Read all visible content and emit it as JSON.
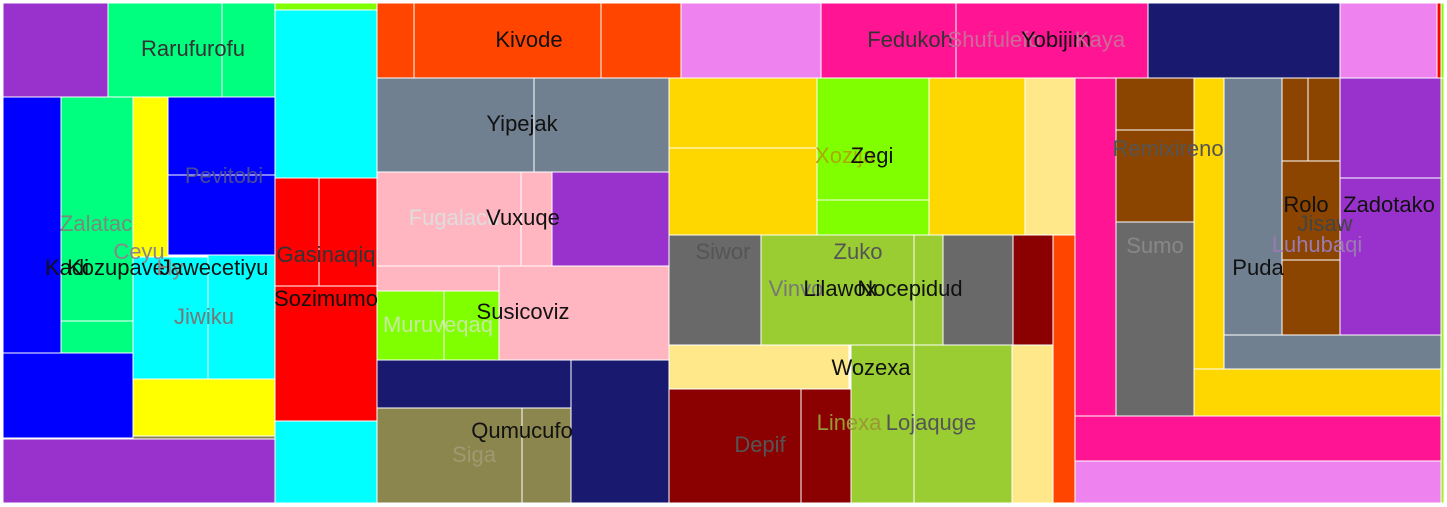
{
  "chart_data": {
    "type": "treemap",
    "colors": {
      "purple": "#9932cc",
      "green": "#00ff7f",
      "chartreuse": "#7fff00",
      "blue": "#0000ff",
      "yellow": "#ffff00",
      "cyan": "#00ffff",
      "red": "#ff0000",
      "orangered": "#ff4500",
      "slate": "#708090",
      "pink": "#ffb6c1",
      "navy": "#191970",
      "olive": "#8b864e",
      "violet": "#ee82ee",
      "deeppink": "#ff1493",
      "gold": "#ffd700",
      "khaki": "#ffe88a",
      "dimgray": "#696969",
      "yellowgreen": "#9acd32",
      "maroon": "#8b0000",
      "brown": "#8b4500",
      "darkgold": "#d4c700",
      "lightlime": "#a0f020"
    },
    "labels": [
      {
        "text": "Rarufurofu",
        "color": "#333333"
      },
      {
        "text": "Zalatac",
        "color": "#7a8a7a"
      },
      {
        "text": "Ceyu",
        "color": "#888888"
      },
      {
        "text": "Kadi",
        "color": "#111111"
      },
      {
        "text": "Kozupave",
        "color": "#111111"
      },
      {
        "text": "Hy",
        "color": "#888888"
      },
      {
        "text": "Jawecetiyu",
        "color": "#111111"
      },
      {
        "text": "Jiwiku",
        "color": "#777777"
      },
      {
        "text": "Pevitobi",
        "color": "#4a4a99"
      },
      {
        "text": "Gasinaqiq",
        "color": "#333333"
      },
      {
        "text": "Sozimumo",
        "color": "#111111"
      },
      {
        "text": "Kivode",
        "color": "#111111"
      },
      {
        "text": "Yipejak",
        "color": "#111111"
      },
      {
        "text": "Fugalacu",
        "color": "#dddddd"
      },
      {
        "text": "Vuxuqe",
        "color": "#111111"
      },
      {
        "text": "Muruveqaq",
        "color": "#c8e8a0"
      },
      {
        "text": "Susicoviz",
        "color": "#111111"
      },
      {
        "text": "Qumucufo",
        "color": "#111111"
      },
      {
        "text": "Siga",
        "color": "#a09870"
      },
      {
        "text": "Fedukoh",
        "color": "#333333"
      },
      {
        "text": "Shufulefo",
        "color": "#cc6a99"
      },
      {
        "text": "Yobijim",
        "color": "#111111"
      },
      {
        "text": "Kaya",
        "color": "#cc6a99"
      },
      {
        "text": "Xozija",
        "color": "#aaaa00"
      },
      {
        "text": "Zegi",
        "color": "#111111"
      },
      {
        "text": "Siwor",
        "color": "#555555"
      },
      {
        "text": "Zuko",
        "color": "#555555"
      },
      {
        "text": "Vinvo",
        "color": "#777777"
      },
      {
        "text": "Lilawox",
        "color": "#111111"
      },
      {
        "text": "Nocepidud",
        "color": "#111111"
      },
      {
        "text": "Wozexa",
        "color": "#111111"
      },
      {
        "text": "Depif",
        "color": "#555555"
      },
      {
        "text": "Linexa",
        "color": "#999933"
      },
      {
        "text": "Lojaquge",
        "color": "#555555"
      },
      {
        "text": "Remixireno",
        "color": "#555555"
      },
      {
        "text": "Sumo",
        "color": "#888888"
      },
      {
        "text": "Puda",
        "color": "#111111"
      },
      {
        "text": "Rolo",
        "color": "#111111"
      },
      {
        "text": "Jisaw",
        "color": "#444444"
      },
      {
        "text": "Zadotako",
        "color": "#111111"
      },
      {
        "text": "Luhubaqi",
        "color": "#9a7ab0"
      }
    ]
  }
}
